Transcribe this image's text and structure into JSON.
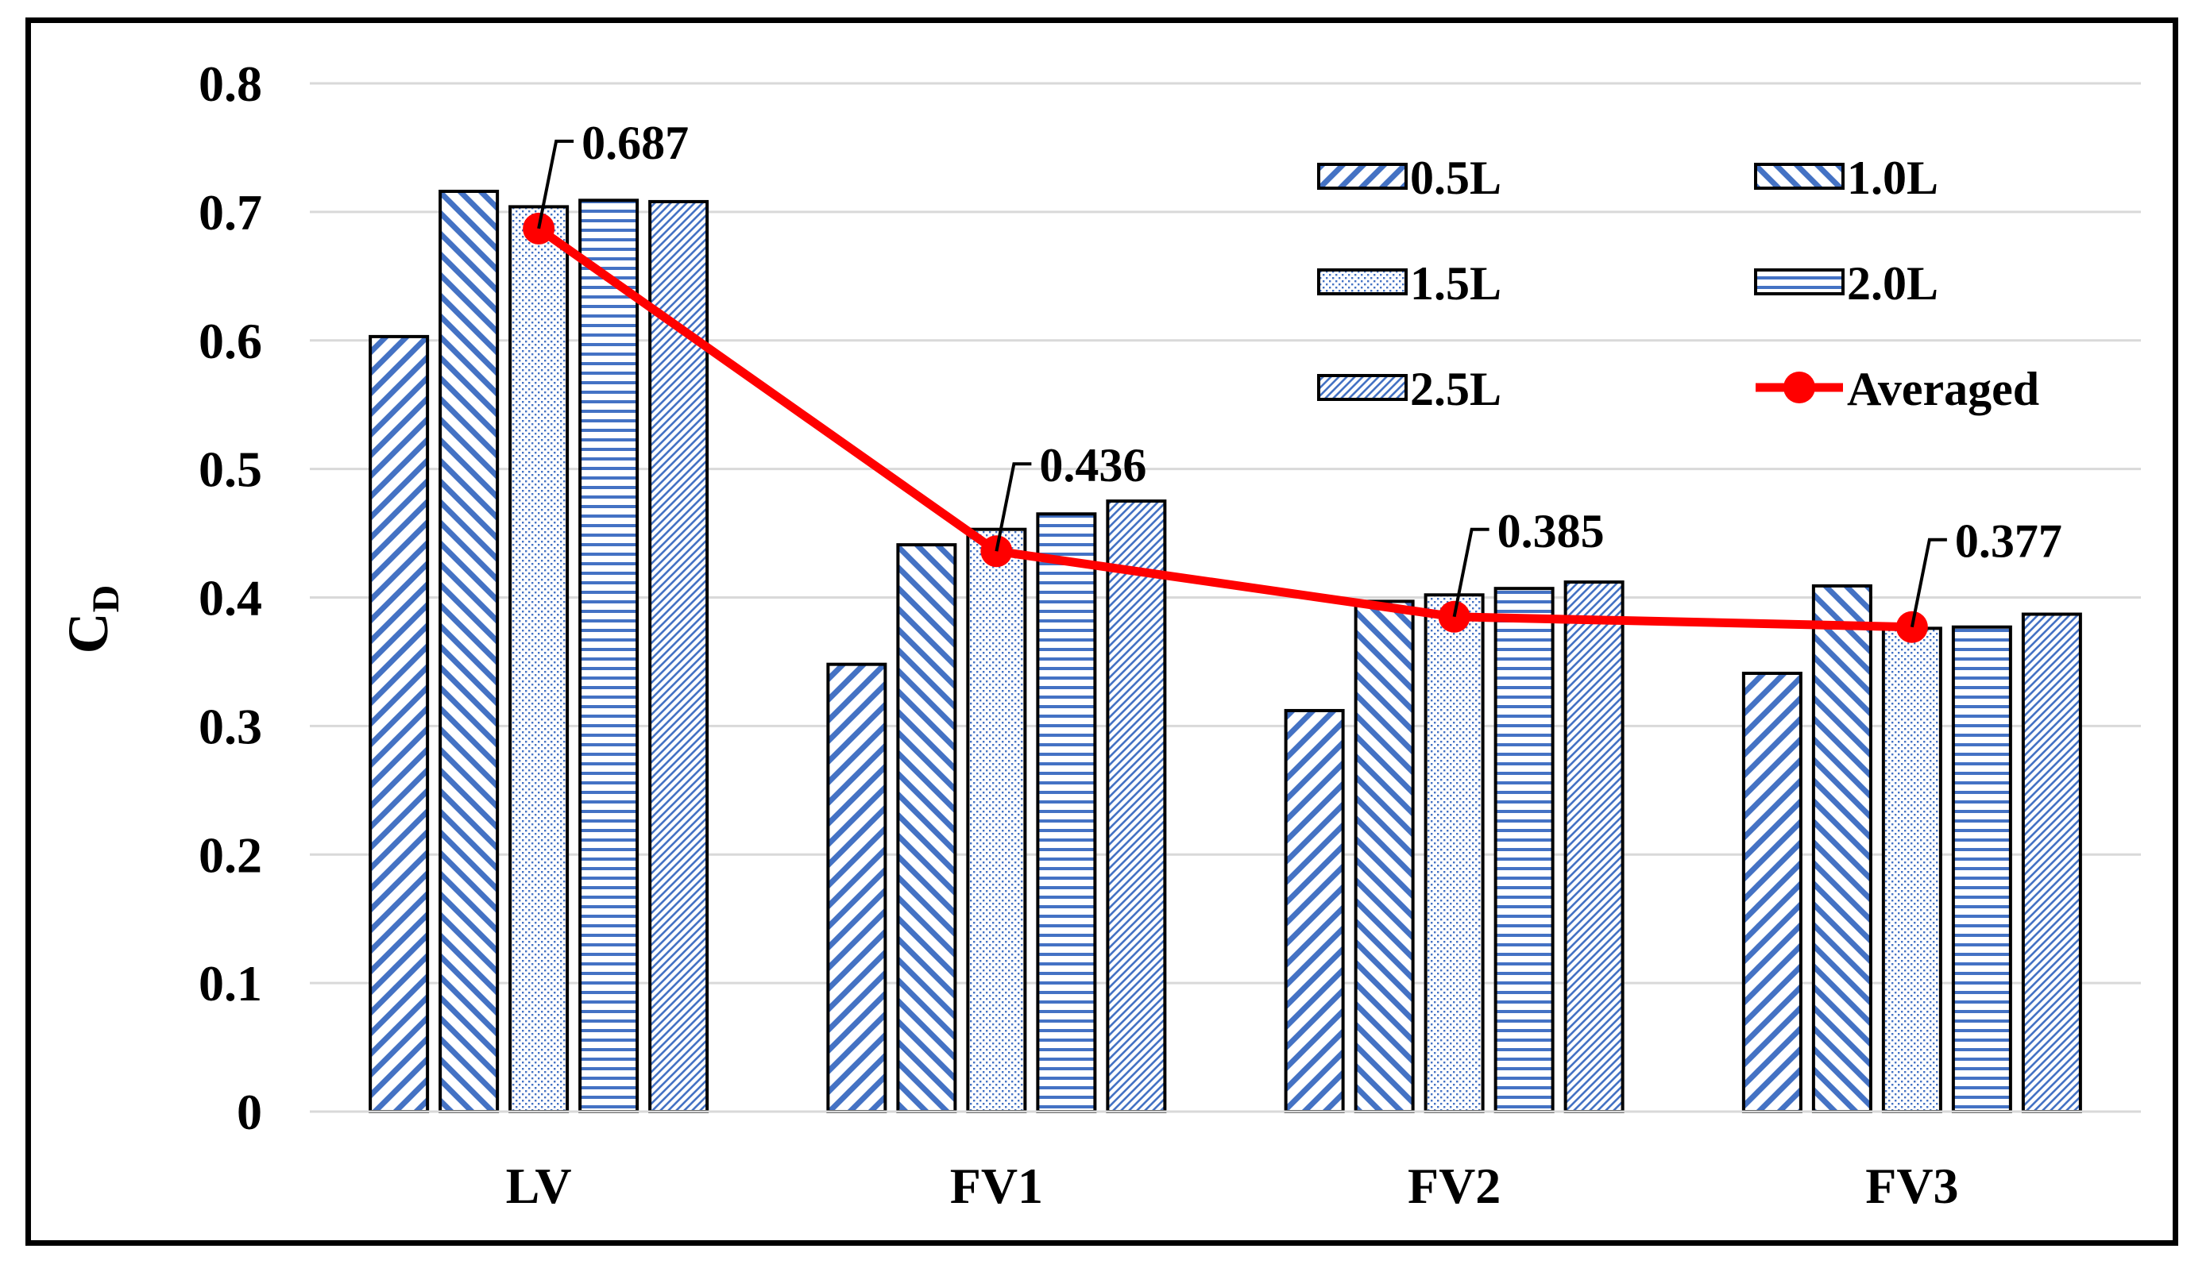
{
  "chart_data": {
    "type": "bar",
    "title": "",
    "xlabel": "",
    "ylabel": "C",
    "ylabel_subscript": "D",
    "categories": [
      "LV",
      "FV1",
      "FV2",
      "FV3"
    ],
    "ylim": [
      0,
      0.8
    ],
    "yticks": [
      0,
      0.1,
      0.2,
      0.3,
      0.4,
      0.5,
      0.6,
      0.7,
      0.8
    ],
    "ytick_labels": [
      "0",
      "0.1",
      "0.2",
      "0.3",
      "0.4",
      "0.5",
      "0.6",
      "0.7",
      "0.8"
    ],
    "grid": true,
    "legend_position": "top-right",
    "series": [
      {
        "name": "0.5L",
        "pattern": "diag-up",
        "values": [
          0.603,
          0.348,
          0.312,
          0.341
        ]
      },
      {
        "name": "1.0L",
        "pattern": "diag-down",
        "values": [
          0.716,
          0.441,
          0.397,
          0.409
        ]
      },
      {
        "name": "1.5L",
        "pattern": "dots",
        "values": [
          0.704,
          0.453,
          0.402,
          0.376
        ]
      },
      {
        "name": "2.0L",
        "pattern": "horizontal",
        "values": [
          0.709,
          0.465,
          0.407,
          0.377
        ]
      },
      {
        "name": "2.5L",
        "pattern": "fine-diag",
        "values": [
          0.708,
          0.475,
          0.412,
          0.387
        ]
      }
    ],
    "line_series": {
      "name": "Averaged",
      "values": [
        0.687,
        0.436,
        0.385,
        0.377
      ],
      "labels": [
        "0.687",
        "0.436",
        "0.385",
        "0.377"
      ]
    },
    "colors": {
      "bar_pattern": "#4472C4",
      "line": "#FF0000",
      "grid": "#D9D9D9",
      "axis": "#000000"
    }
  }
}
